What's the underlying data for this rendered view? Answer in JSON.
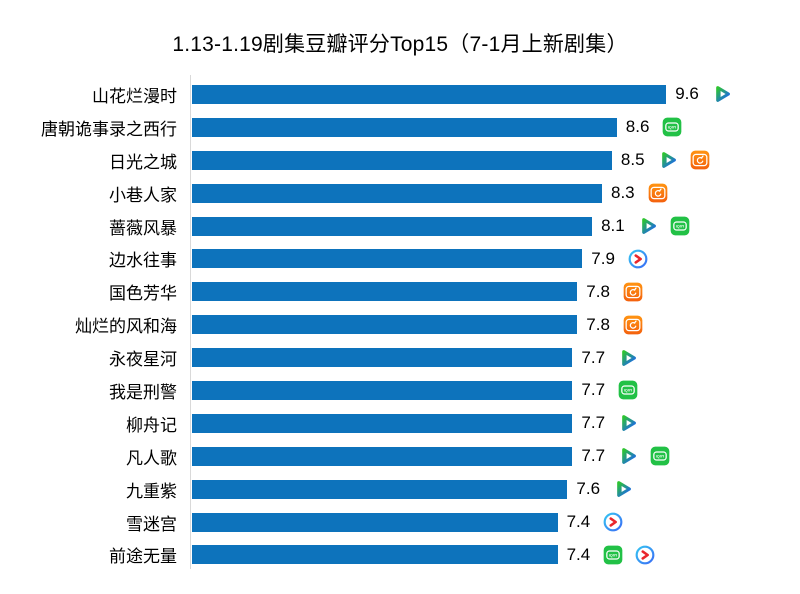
{
  "chart_data": {
    "type": "bar",
    "orientation": "horizontal",
    "title": "1.13-1.19剧集豆瓣评分Top15（7-1月上新剧集）",
    "xlabel": "",
    "ylabel": "",
    "xlim": [
      0,
      10
    ],
    "grid": false,
    "legend": "none",
    "categories": [
      "山花烂漫时",
      "唐朝诡事录之西行",
      "日光之城",
      "小巷人家",
      "蔷薇风暴",
      "边水往事",
      "国色芳华",
      "灿烂的风和海",
      "永夜星河",
      "我是刑警",
      "柳舟记",
      "凡人歌",
      "九重紫",
      "雪迷宫",
      "前途无量"
    ],
    "values": [
      9.6,
      8.6,
      8.5,
      8.3,
      8.1,
      7.9,
      7.8,
      7.8,
      7.7,
      7.7,
      7.7,
      7.7,
      7.6,
      7.4,
      7.4
    ],
    "platforms": [
      [
        "tencent-video"
      ],
      [
        "iqiyi"
      ],
      [
        "tencent-video",
        "mango-tv"
      ],
      [
        "mango-tv"
      ],
      [
        "tencent-video",
        "iqiyi"
      ],
      [
        "youku"
      ],
      [
        "mango-tv"
      ],
      [
        "mango-tv"
      ],
      [
        "tencent-video"
      ],
      [
        "iqiyi"
      ],
      [
        "tencent-video"
      ],
      [
        "tencent-video",
        "iqiyi"
      ],
      [
        "tencent-video"
      ],
      [
        "youku"
      ],
      [
        "iqiyi",
        "youku"
      ]
    ]
  },
  "colors": {
    "bar": "#0d73bc",
    "axis_line": "#d9d9d9",
    "text": "#000000",
    "tencent_orange": "#ff9d00",
    "tencent_orange_light": "#ffc400",
    "tencent_green": "#2ec52f",
    "tencent_blue": "#1b64f2",
    "iqiyi_green": "#22c146",
    "mango_orange_top": "#ff9412",
    "mango_orange_bottom": "#f4610e",
    "youku_ring_start": "#35c5f2",
    "youku_ring_end": "#3a6df5",
    "youku_arrow": "#e9262c",
    "icon_white": "#ffffff"
  },
  "iqiyi_icon_text": "iQIYI"
}
